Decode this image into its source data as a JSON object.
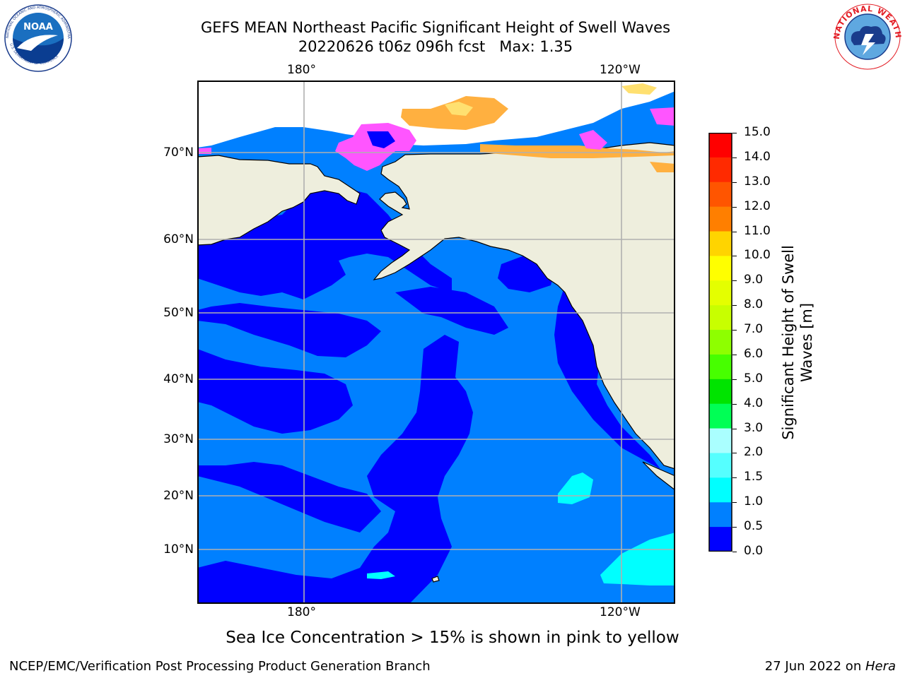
{
  "title": {
    "line1": "GEFS MEAN Northeast Pacific Significant Height of Swell Waves",
    "line2": "20220626 t06z 096h fcst   Max: 1.35"
  },
  "logos": {
    "left": {
      "text": "NOAA",
      "ring_text": "NATIONAL OCEANIC AND ATMOSPHERIC ADMINISTRATION · U.S. DEPARTMENT OF COMMERCE",
      "color": "#1a6fc0"
    },
    "right": {
      "ring_text": "NATIONAL WEATHER SERVICE",
      "color": "#e31b23"
    }
  },
  "map": {
    "longitude_labels": [
      "180°",
      "120°W"
    ],
    "latitude_labels": [
      "70°N",
      "60°N",
      "50°N",
      "40°N",
      "30°N",
      "20°N",
      "10°N"
    ],
    "colors": {
      "ocean_low": "#0000ff",
      "ocean_mid": "#0080ff",
      "ocean_high": "#00ffff",
      "land": "#eeeedd",
      "grid": "#b0b0b0",
      "ice_pink": "#ff55ff",
      "ice_orange": "#ffb040",
      "ice_yellow": "#ffe070"
    }
  },
  "colorbar": {
    "label": "Significant Height of Swell Waves [m]",
    "label_line1": "Significant Height of Swell",
    "label_line2": "Waves [m]",
    "ticks": [
      "15.0",
      "14.0",
      "13.0",
      "12.0",
      "11.0",
      "10.0",
      "9.0",
      "8.0",
      "7.0",
      "6.0",
      "5.0",
      "4.0",
      "3.0",
      "2.0",
      "1.5",
      "1.0",
      "0.5",
      "0.0"
    ],
    "colors_top_to_bottom": [
      "#ff0000",
      "#ff2a00",
      "#ff5500",
      "#ff7f00",
      "#ffaa00",
      "#ffd400",
      "#ffff00",
      "#e4ff00",
      "#c8ff00",
      "#8eff00",
      "#47ff00",
      "#00e400",
      "#00ff55",
      "#55ffaa",
      "#aaffff",
      "#55ffff",
      "#00ffff",
      "#0080ff",
      "#0000ff"
    ]
  },
  "ice_note": "Sea Ice Concentration > 15% is shown in pink to yellow",
  "footer": {
    "left": "NCEP/EMC/Verification Post Processing Product Generation Branch",
    "right_date": "27 Jun 2022 on ",
    "right_host": "Hera"
  }
}
